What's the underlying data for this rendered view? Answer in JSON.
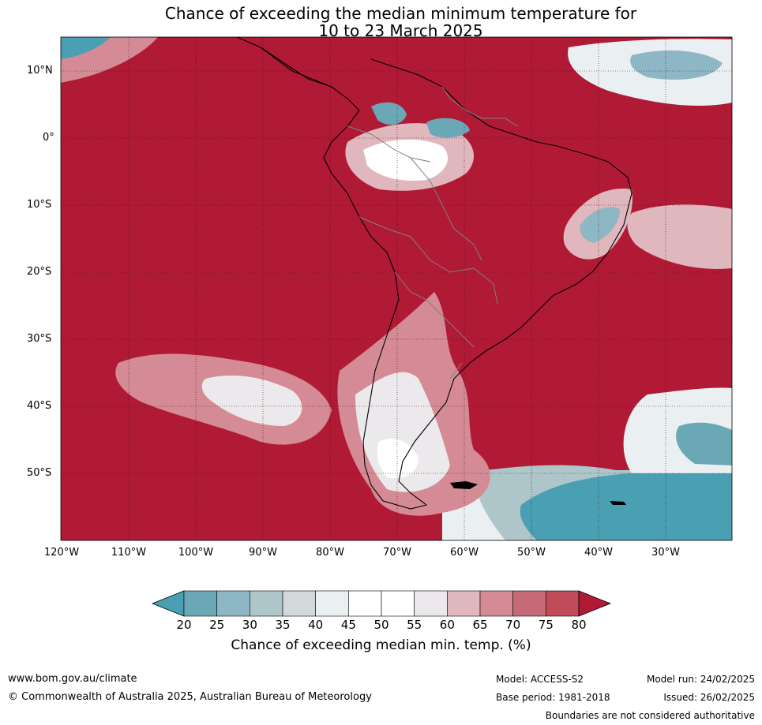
{
  "title_line1": "Chance of exceeding the median minimum temperature for",
  "title_line2": "10 to 23 March 2025",
  "latitude_labels": [
    "10°N",
    "0°",
    "10°S",
    "20°S",
    "30°S",
    "40°S",
    "50°S"
  ],
  "longitude_labels": [
    "120°W",
    "110°W",
    "100°W",
    "90°W",
    "80°W",
    "70°W",
    "60°W",
    "50°W",
    "40°W",
    "30°W"
  ],
  "colorbar": {
    "ticks": [
      "20",
      "25",
      "30",
      "35",
      "40",
      "45",
      "50",
      "55",
      "60",
      "65",
      "70",
      "75",
      "80"
    ],
    "colors": [
      "#4a9fb2",
      "#6aa8b6",
      "#8db7c4",
      "#aec5ca",
      "#d2d9db",
      "#eaf0f2",
      "#ffffff",
      "#ffffff",
      "#ebe9eb",
      "#e0b7bc",
      "#d48b95",
      "#c56a76",
      "#c04a58",
      "#b01a35"
    ],
    "label": "Chance of exceeding median min. temp. (%)"
  },
  "footer": {
    "website": "www.bom.gov.au/climate",
    "copyright": "© Commonwealth of Australia 2025, Australian Bureau of Meteorology",
    "model": "Model: ACCESS-S2",
    "base_period": "Base period: 1981-2018",
    "model_run": "Model run: 24/02/2025",
    "issued": "Issued: 26/02/2025",
    "disclaimer": "Boundaries are not considered authoritative"
  }
}
